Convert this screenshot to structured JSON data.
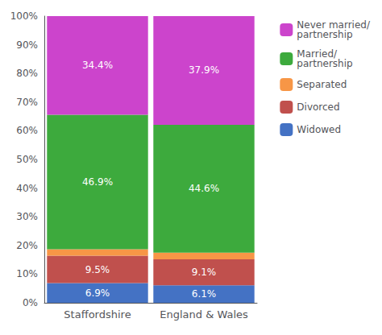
{
  "chart_data": {
    "type": "bar",
    "stacked": true,
    "categories": [
      "Staffordshire",
      "England & Wales"
    ],
    "series": [
      {
        "name": "Widowed",
        "color": "#4472C4",
        "values": [
          6.9,
          6.1
        ],
        "value_labels": [
          "6.9%",
          "6.1%"
        ]
      },
      {
        "name": "Divorced",
        "color": "#C0504D",
        "values": [
          9.5,
          9.1
        ],
        "value_labels": [
          "9.5%",
          "9.1%"
        ]
      },
      {
        "name": "Separated",
        "color": "#F79646",
        "values": [
          2.3,
          2.3
        ]
      },
      {
        "name": "Married/\npartnership",
        "color": "#3DAA3D",
        "values": [
          46.9,
          44.6
        ],
        "value_labels": [
          "46.9%",
          "44.6%"
        ]
      },
      {
        "name": "Never married/\npartnership",
        "color": "#CC44CC",
        "values": [
          34.4,
          37.9
        ],
        "value_labels": [
          "34.4%",
          "37.9%"
        ]
      }
    ],
    "ylim": [
      0,
      100
    ],
    "yticks": [
      {
        "value": 0,
        "label": "0%"
      },
      {
        "value": 10,
        "label": "10%"
      },
      {
        "value": 20,
        "label": "20%"
      },
      {
        "value": 30,
        "label": "30%"
      },
      {
        "value": 40,
        "label": "40%"
      },
      {
        "value": 50,
        "label": "50%"
      },
      {
        "value": 60,
        "label": "60%"
      },
      {
        "value": 70,
        "label": "70%"
      },
      {
        "value": 80,
        "label": "80%"
      },
      {
        "value": 90,
        "label": "90%"
      },
      {
        "value": 100,
        "label": "100%"
      }
    ],
    "grid": false,
    "legend": "right"
  }
}
